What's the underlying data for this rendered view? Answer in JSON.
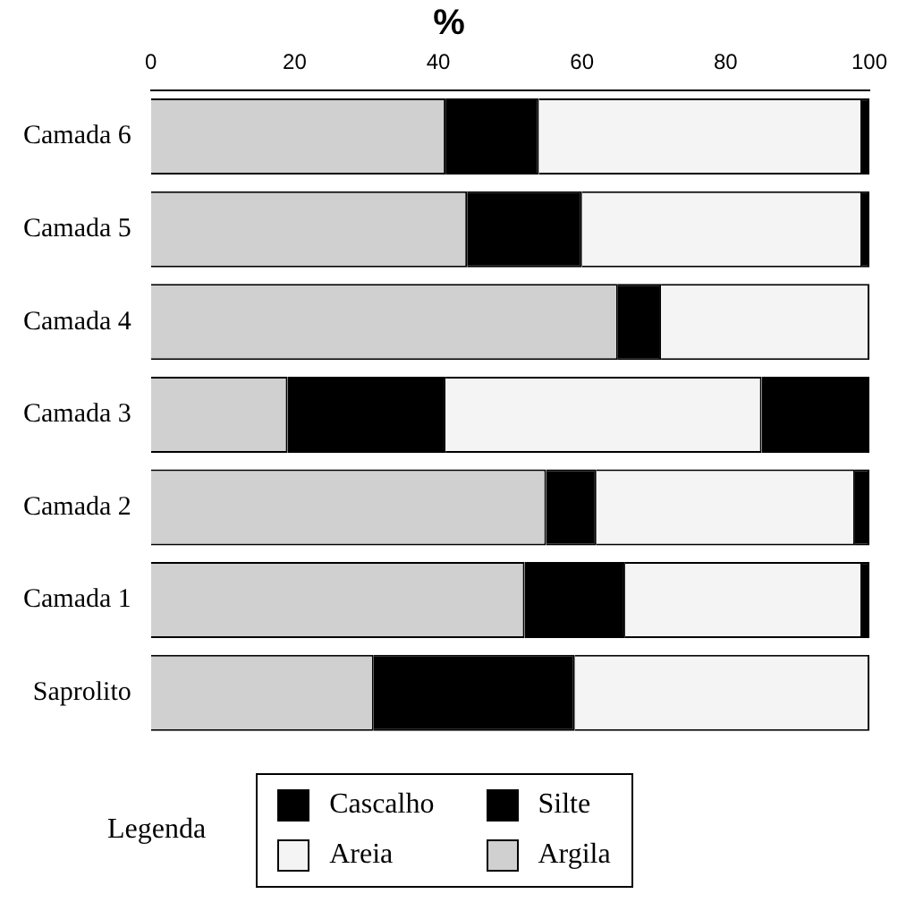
{
  "chart_data": {
    "type": "bar",
    "orientation": "horizontal",
    "stacked": true,
    "title": "%",
    "legend_title": "Legenda",
    "legend": "bottom",
    "grid": false,
    "categories": [
      "Camada 6",
      "Camada 5",
      "Camada 4",
      "Camada 3",
      "Camada 2",
      "Camada 1",
      "Saprolito"
    ],
    "xlim": [
      0,
      100
    ],
    "xticks": [
      0,
      20,
      40,
      60,
      80,
      100
    ],
    "series": [
      {
        "name": "Argila",
        "color": "#d0d0d0",
        "values": [
          41,
          44,
          65,
          19,
          55,
          52,
          31
        ]
      },
      {
        "name": "Silte",
        "color": "#000000",
        "values": [
          13,
          16,
          6,
          22,
          7,
          14,
          28
        ]
      },
      {
        "name": "Areia",
        "color": "#f4f4f4",
        "values": [
          45,
          39,
          29,
          44,
          36,
          33,
          41
        ]
      },
      {
        "name": "Cascalho",
        "color": "#000000",
        "values": [
          1,
          1,
          0,
          15,
          2,
          1,
          0
        ]
      }
    ]
  }
}
